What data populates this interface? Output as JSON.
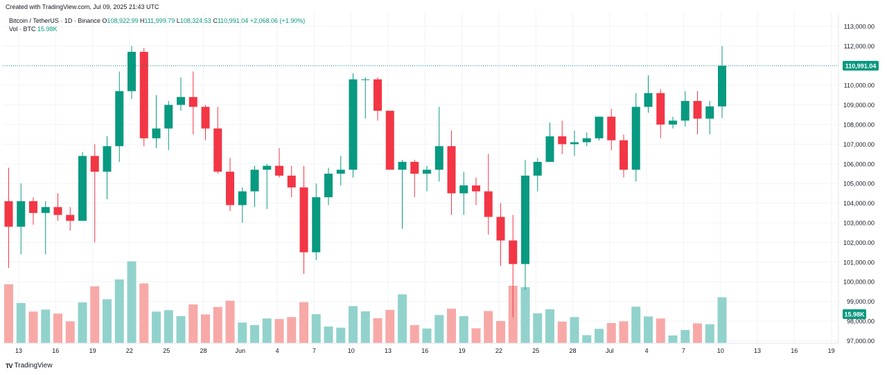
{
  "header": {
    "created": "Created with TradingView.com, Jul 09, 2025 21:43 UTC",
    "symbol": "Bitcoin / TetherUS · 1D · Binance",
    "o_label": "O",
    "o_value": "108,922.99",
    "h_label": "H",
    "h_value": "111,999.79",
    "l_label": "L",
    "l_value": "108,324.53",
    "c_label": "C",
    "c_value": "110,991.04",
    "change": "+2,068.06 (+1.90%)",
    "vol_label": "Vol · BTC",
    "vol_value": "15.98K"
  },
  "brand": {
    "logo": "TV",
    "name": "TradingView"
  },
  "colors": {
    "up": "#089981",
    "down": "#f23645",
    "up_vol": "#92d2cc",
    "down_vol": "#f7a9a7",
    "grid": "#f0f3fa",
    "text": "#131722"
  },
  "chart_data": {
    "type": "candlestick",
    "ylim": [
      96800,
      113600
    ],
    "y_ticks": [
      "113,000.00",
      "112,000.00",
      "111,000.00",
      "110,000.00",
      "109,000.00",
      "108,000.00",
      "107,000.00",
      "106,000.00",
      "105,000.00",
      "104,000.00",
      "103,000.00",
      "102,000.00",
      "101,000.00",
      "100,000.00",
      "99,000.00",
      "98,000.00",
      "97,000.00"
    ],
    "x_ticks": [
      "13",
      "16",
      "19",
      "22",
      "25",
      "28",
      "Jun",
      "4",
      "7",
      "10",
      "13",
      "16",
      "19",
      "22",
      "25",
      "28",
      "Jul",
      "4",
      "7",
      "10",
      "13",
      "16",
      "19"
    ],
    "last_price_label": "110,991.04",
    "volume_label": "15.98K",
    "candles": [
      {
        "d": "May 12",
        "o": 104100,
        "h": 105800,
        "l": 100700,
        "c": 102800,
        "v": 20.5
      },
      {
        "d": "May 13",
        "o": 102800,
        "h": 105000,
        "l": 101400,
        "c": 104100,
        "v": 14.0
      },
      {
        "d": "May 14",
        "o": 104100,
        "h": 104300,
        "l": 102900,
        "c": 103500,
        "v": 11.0
      },
      {
        "d": "May 15",
        "o": 103500,
        "h": 104100,
        "l": 101400,
        "c": 103800,
        "v": 11.7
      },
      {
        "d": "May 16",
        "o": 103800,
        "h": 104500,
        "l": 103100,
        "c": 103400,
        "v": 10.3
      },
      {
        "d": "May 17",
        "o": 103400,
        "h": 103800,
        "l": 102600,
        "c": 103100,
        "v": 7.6
      },
      {
        "d": "May 18",
        "o": 103100,
        "h": 106600,
        "l": 103100,
        "c": 106400,
        "v": 14.2
      },
      {
        "d": "May 19",
        "o": 106400,
        "h": 107000,
        "l": 102000,
        "c": 105600,
        "v": 19.8
      },
      {
        "d": "May 20",
        "o": 105600,
        "h": 107400,
        "l": 104200,
        "c": 106900,
        "v": 15.3
      },
      {
        "d": "May 21",
        "o": 106900,
        "h": 110700,
        "l": 106100,
        "c": 109700,
        "v": 22.2
      },
      {
        "d": "May 22",
        "o": 109700,
        "h": 112000,
        "l": 109300,
        "c": 111700,
        "v": 28.5
      },
      {
        "d": "May 23",
        "o": 111700,
        "h": 111900,
        "l": 106900,
        "c": 107300,
        "v": 20.8
      },
      {
        "d": "May 24",
        "o": 107300,
        "h": 109500,
        "l": 106800,
        "c": 107800,
        "v": 11.0
      },
      {
        "d": "May 25",
        "o": 107800,
        "h": 109200,
        "l": 106700,
        "c": 109000,
        "v": 11.5
      },
      {
        "d": "May 26",
        "o": 109000,
        "h": 110400,
        "l": 108700,
        "c": 109400,
        "v": 9.4
      },
      {
        "d": "May 27",
        "o": 109400,
        "h": 110700,
        "l": 107500,
        "c": 108900,
        "v": 13.5
      },
      {
        "d": "May 28",
        "o": 108900,
        "h": 109000,
        "l": 107200,
        "c": 107800,
        "v": 10.0
      },
      {
        "d": "May 29",
        "o": 107800,
        "h": 108900,
        "l": 105500,
        "c": 105600,
        "v": 12.6
      },
      {
        "d": "May 30",
        "o": 105600,
        "h": 106300,
        "l": 103600,
        "c": 103900,
        "v": 14.8
      },
      {
        "d": "May 31",
        "o": 103900,
        "h": 104800,
        "l": 103000,
        "c": 104600,
        "v": 7.2
      },
      {
        "d": "Jun 01",
        "o": 104600,
        "h": 105900,
        "l": 103800,
        "c": 105700,
        "v": 6.3
      },
      {
        "d": "Jun 02",
        "o": 105700,
        "h": 106000,
        "l": 103700,
        "c": 105900,
        "v": 8.6
      },
      {
        "d": "Jun 03",
        "o": 105900,
        "h": 106800,
        "l": 105300,
        "c": 105400,
        "v": 8.4
      },
      {
        "d": "Jun 04",
        "o": 105400,
        "h": 105900,
        "l": 104300,
        "c": 104800,
        "v": 9.1
      },
      {
        "d": "Jun 05",
        "o": 104800,
        "h": 105900,
        "l": 100400,
        "c": 101500,
        "v": 14.3
      },
      {
        "d": "Jun 06",
        "o": 101500,
        "h": 105000,
        "l": 101100,
        "c": 104300,
        "v": 10.1
      },
      {
        "d": "Jun 07",
        "o": 104300,
        "h": 105800,
        "l": 103900,
        "c": 105500,
        "v": 5.8
      },
      {
        "d": "Jun 08",
        "o": 105500,
        "h": 106400,
        "l": 104900,
        "c": 105700,
        "v": 5.4
      },
      {
        "d": "Jun 09",
        "o": 105700,
        "h": 110600,
        "l": 105300,
        "c": 110300,
        "v": 12.9
      },
      {
        "d": "Jun 10",
        "o": 110300,
        "h": 110400,
        "l": 108300,
        "c": 110300,
        "v": 11.1
      },
      {
        "d": "Jun 11",
        "o": 110300,
        "h": 110400,
        "l": 108200,
        "c": 108700,
        "v": 8.7
      },
      {
        "d": "Jun 12",
        "o": 108700,
        "h": 108700,
        "l": 105700,
        "c": 105700,
        "v": 11.6
      },
      {
        "d": "Jun 13",
        "o": 105700,
        "h": 106200,
        "l": 102700,
        "c": 106100,
        "v": 17.0
      },
      {
        "d": "Jun 14",
        "o": 106100,
        "h": 106200,
        "l": 104300,
        "c": 105500,
        "v": 6.3
      },
      {
        "d": "Jun 15",
        "o": 105500,
        "h": 105900,
        "l": 104600,
        "c": 105700,
        "v": 5.1
      },
      {
        "d": "Jun 16",
        "o": 105700,
        "h": 108900,
        "l": 105100,
        "c": 106900,
        "v": 9.8
      },
      {
        "d": "Jun 17",
        "o": 106900,
        "h": 107700,
        "l": 103400,
        "c": 104500,
        "v": 12.0
      },
      {
        "d": "Jun 18",
        "o": 104500,
        "h": 105600,
        "l": 103400,
        "c": 104900,
        "v": 9.4
      },
      {
        "d": "Jun 19",
        "o": 104900,
        "h": 105300,
        "l": 103900,
        "c": 104600,
        "v": 5.2
      },
      {
        "d": "Jun 20",
        "o": 104600,
        "h": 106500,
        "l": 102400,
        "c": 103300,
        "v": 11.2
      },
      {
        "d": "Jun 21",
        "o": 103300,
        "h": 104000,
        "l": 100800,
        "c": 102100,
        "v": 7.7
      },
      {
        "d": "Jun 22",
        "o": 102100,
        "h": 103400,
        "l": 98200,
        "c": 100900,
        "v": 20.0
      },
      {
        "d": "Jun 23",
        "o": 100900,
        "h": 106200,
        "l": 99600,
        "c": 105400,
        "v": 19.5
      },
      {
        "d": "Jun 24",
        "o": 105400,
        "h": 106300,
        "l": 104600,
        "c": 106100,
        "v": 10.4
      },
      {
        "d": "Jun 25",
        "o": 106100,
        "h": 108100,
        "l": 106100,
        "c": 107400,
        "v": 11.8
      },
      {
        "d": "Jun 26",
        "o": 107400,
        "h": 108200,
        "l": 106500,
        "c": 107000,
        "v": 7.5
      },
      {
        "d": "Jun 27",
        "o": 107000,
        "h": 107700,
        "l": 106400,
        "c": 107100,
        "v": 9.1
      },
      {
        "d": "Jun 28",
        "o": 107100,
        "h": 107600,
        "l": 106900,
        "c": 107300,
        "v": 2.8
      },
      {
        "d": "Jun 29",
        "o": 107300,
        "h": 108400,
        "l": 107200,
        "c": 108400,
        "v": 5.0
      },
      {
        "d": "Jun 30",
        "o": 108400,
        "h": 108800,
        "l": 106700,
        "c": 107200,
        "v": 7.0
      },
      {
        "d": "Jul 01",
        "o": 107200,
        "h": 107500,
        "l": 105300,
        "c": 105700,
        "v": 7.6
      },
      {
        "d": "Jul 02",
        "o": 105700,
        "h": 109600,
        "l": 105100,
        "c": 108900,
        "v": 12.7
      },
      {
        "d": "Jul 03",
        "o": 108900,
        "h": 110500,
        "l": 108600,
        "c": 109600,
        "v": 9.3
      },
      {
        "d": "Jul 04",
        "o": 109600,
        "h": 109800,
        "l": 107300,
        "c": 108000,
        "v": 8.6
      },
      {
        "d": "Jul 05",
        "o": 108000,
        "h": 108400,
        "l": 107800,
        "c": 108200,
        "v": 2.7
      },
      {
        "d": "Jul 06",
        "o": 108200,
        "h": 109700,
        "l": 107900,
        "c": 109200,
        "v": 4.6
      },
      {
        "d": "Jul 07",
        "o": 109200,
        "h": 109700,
        "l": 107500,
        "c": 108300,
        "v": 6.9
      },
      {
        "d": "Jul 08",
        "o": 108300,
        "h": 109200,
        "l": 107500,
        "c": 108923,
        "v": 6.6
      },
      {
        "d": "Jul 09",
        "o": 108923,
        "h": 111999.79,
        "l": 108324.53,
        "c": 110991.04,
        "v": 15.98
      }
    ]
  }
}
